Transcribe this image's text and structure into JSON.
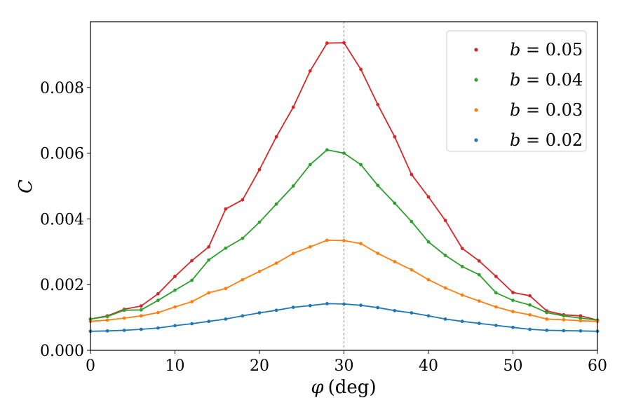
{
  "chart_data": {
    "type": "line",
    "title": "",
    "xlabel_var": "φ",
    "xlabel_unit": "(deg)",
    "ylabel": "C",
    "xlim": [
      0,
      60
    ],
    "ylim": [
      0,
      0.01
    ],
    "xticks": [
      0,
      10,
      20,
      30,
      40,
      50,
      60
    ],
    "xtick_labels": [
      "0",
      "10",
      "20",
      "30",
      "40",
      "50",
      "60"
    ],
    "yticks": [
      0,
      0.002,
      0.004,
      0.006,
      0.008
    ],
    "ytick_labels": [
      "0.000",
      "0.002",
      "0.004",
      "0.006",
      "0.008"
    ],
    "reference_line_x": 30,
    "grid": false,
    "legend_position": "top-right",
    "x": [
      0,
      2,
      4,
      6,
      8,
      10,
      12,
      14,
      16,
      18,
      20,
      22,
      24,
      26,
      28,
      30,
      32,
      34,
      36,
      38,
      40,
      42,
      44,
      46,
      48,
      50,
      52,
      54,
      56,
      58,
      60
    ],
    "series": [
      {
        "name": "b = 0.05",
        "b_value": "0.05",
        "color": "#d62728",
        "values": [
          0.00095,
          0.00105,
          0.00125,
          0.00135,
          0.00172,
          0.00225,
          0.00273,
          0.00315,
          0.0043,
          0.00458,
          0.0055,
          0.0065,
          0.0074,
          0.0085,
          0.00935,
          0.00936,
          0.00855,
          0.00748,
          0.0065,
          0.00535,
          0.00467,
          0.00395,
          0.0031,
          0.00272,
          0.00225,
          0.00176,
          0.00166,
          0.0012,
          0.00108,
          0.00105,
          0.00092
        ]
      },
      {
        "name": "b = 0.04",
        "b_value": "0.04",
        "color": "#2ca02c",
        "values": [
          0.00095,
          0.00103,
          0.00122,
          0.00123,
          0.00152,
          0.00183,
          0.00213,
          0.00275,
          0.00311,
          0.00341,
          0.0039,
          0.00445,
          0.005,
          0.00565,
          0.0061,
          0.006,
          0.00565,
          0.00502,
          0.00448,
          0.00392,
          0.0033,
          0.00289,
          0.00255,
          0.0023,
          0.00175,
          0.00152,
          0.00138,
          0.00115,
          0.00105,
          0.00098,
          0.00092
        ]
      },
      {
        "name": "b = 0.03",
        "b_value": "0.03",
        "color": "#ff7f0e",
        "values": [
          0.00088,
          0.00092,
          0.00098,
          0.00105,
          0.00115,
          0.00132,
          0.00148,
          0.00175,
          0.00188,
          0.00215,
          0.0024,
          0.00265,
          0.00295,
          0.00315,
          0.00335,
          0.00334,
          0.00325,
          0.00295,
          0.0027,
          0.00245,
          0.00215,
          0.0019,
          0.00168,
          0.0015,
          0.00132,
          0.00118,
          0.00108,
          0.00095,
          0.00093,
          0.0009,
          0.00088
        ]
      },
      {
        "name": "b = 0.02",
        "b_value": "0.02",
        "color": "#1f77b4",
        "values": [
          0.00058,
          0.00059,
          0.00061,
          0.00064,
          0.00068,
          0.00075,
          0.00081,
          0.00088,
          0.00095,
          0.00105,
          0.00114,
          0.00122,
          0.00131,
          0.00136,
          0.00142,
          0.00141,
          0.00137,
          0.0013,
          0.00121,
          0.00114,
          0.00105,
          0.00095,
          0.00088,
          0.00082,
          0.00076,
          0.0007,
          0.00064,
          0.00061,
          0.0006,
          0.00059,
          0.00058
        ]
      }
    ]
  }
}
